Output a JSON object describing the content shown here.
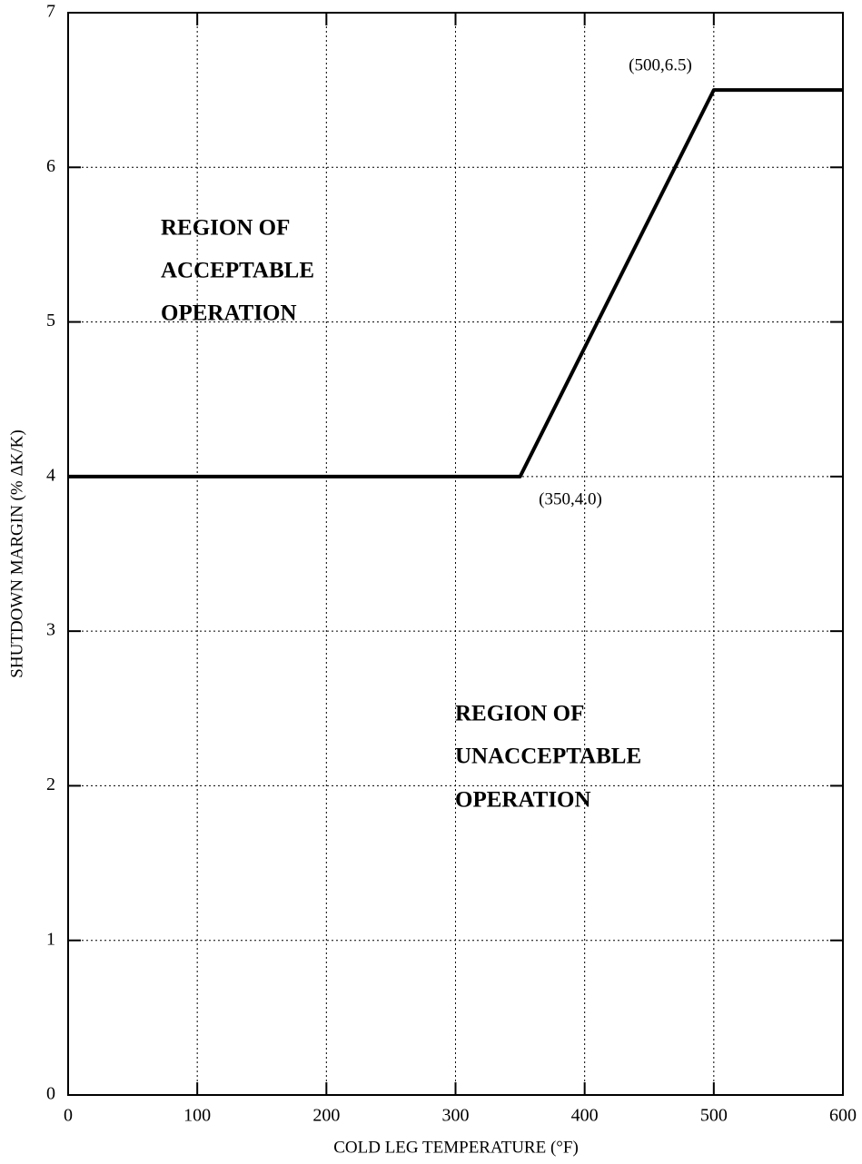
{
  "chart_data": {
    "type": "line",
    "x_label": "COLD LEG TEMPERATURE (°F)",
    "y_label": "SHUTDOWN MARGIN (% ΔK/K)",
    "x": [
      0,
      350,
      500,
      600
    ],
    "series": [
      {
        "color": "#000000",
        "values": [
          4.0,
          4.0,
          6.5,
          6.5
        ]
      }
    ],
    "xlim": [
      0,
      600
    ],
    "xticks": [
      0,
      100,
      200,
      300,
      400,
      500,
      600
    ],
    "ylim": [
      0,
      7
    ],
    "yticks": [
      0,
      1,
      2,
      3,
      4,
      5,
      6,
      7
    ],
    "grid": true,
    "annotations": [
      "(500,6.5)",
      "(350,4.0)",
      "REGION OF",
      "ACCEPTABLE",
      "OPERATION",
      "REGION OF",
      "UNACCEPTABLE",
      "OPERATION"
    ]
  }
}
